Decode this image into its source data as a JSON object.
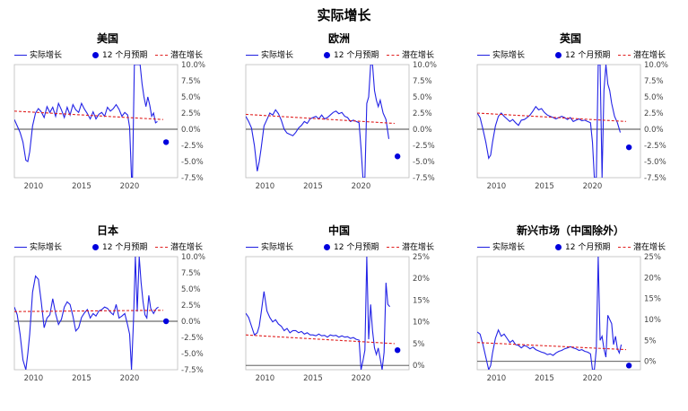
{
  "title": "实际增长",
  "legend": {
    "actual": "实际增长",
    "expected": "12 个月预期",
    "potential": "潜在增长"
  },
  "chart_data": [
    {
      "type": "line",
      "title": "美国",
      "xlim": [
        2008,
        2025
      ],
      "xticks": [
        "2010",
        "2015",
        "2020"
      ],
      "ylim": [
        -7.5,
        10
      ],
      "yticks": [
        "10.0%",
        "7.5%",
        "5.0%",
        "2.5%",
        "0.0%",
        "-2.5%",
        "-5.0%",
        "-7.5%"
      ],
      "ytick_values": [
        10,
        7.5,
        5,
        2.5,
        0,
        -2.5,
        -5,
        -7.5
      ],
      "series": [
        {
          "name": "实际增长",
          "x": [
            2008.0,
            2008.3,
            2008.6,
            2008.9,
            2009.2,
            2009.4,
            2009.6,
            2009.9,
            2010.2,
            2010.5,
            2010.8,
            2011.1,
            2011.4,
            2011.7,
            2012.0,
            2012.3,
            2012.6,
            2012.9,
            2013.2,
            2013.5,
            2013.8,
            2014.1,
            2014.4,
            2014.7,
            2015.0,
            2015.3,
            2015.6,
            2015.9,
            2016.2,
            2016.5,
            2016.8,
            2017.1,
            2017.4,
            2017.7,
            2018.0,
            2018.3,
            2018.6,
            2018.9,
            2019.2,
            2019.5,
            2019.8,
            2020.0,
            2020.2,
            2020.3,
            2020.5,
            2020.7,
            2020.9,
            2021.1,
            2021.3,
            2021.5,
            2021.7,
            2021.9,
            2022.1,
            2022.3,
            2022.5,
            2022.7,
            2022.9
          ],
          "y": [
            1.5,
            0.5,
            -0.5,
            -2.0,
            -4.8,
            -5.0,
            -3.5,
            0.5,
            2.5,
            3.2,
            2.7,
            1.8,
            3.5,
            2.6,
            3.4,
            2.0,
            4.0,
            3.0,
            1.8,
            3.4,
            2.2,
            3.8,
            3.0,
            2.6,
            4.0,
            3.1,
            2.4,
            1.6,
            2.7,
            1.6,
            2.3,
            2.6,
            2.0,
            3.4,
            2.8,
            3.2,
            3.8,
            3.1,
            2.0,
            2.6,
            2.2,
            0.3,
            -9.0,
            -9.0,
            10.0,
            10.0,
            10.0,
            10.0,
            7.0,
            5.0,
            3.5,
            5.0,
            3.7,
            2.0,
            2.5,
            1.0,
            1.2
          ]
        },
        {
          "name": "潜在增长",
          "x": [
            2008,
            2023.5
          ],
          "y": [
            2.8,
            1.5
          ]
        },
        {
          "name": "12 个月预期",
          "x": [
            2023.8
          ],
          "y": [
            -2.0
          ]
        }
      ]
    },
    {
      "type": "line",
      "title": "欧洲",
      "xlim": [
        2008,
        2025
      ],
      "xticks": [
        "2010",
        "2015",
        "2020"
      ],
      "ylim": [
        -7.5,
        10
      ],
      "yticks": [
        "10.0%",
        "7.5%",
        "5.0%",
        "2.5%",
        "0.0%",
        "-2.5%",
        "-5.0%",
        "-7.5%"
      ],
      "ytick_values": [
        10,
        7.5,
        5,
        2.5,
        0,
        -2.5,
        -5,
        -7.5
      ],
      "series": [
        {
          "name": "实际增长",
          "x": [
            2008.0,
            2008.3,
            2008.6,
            2008.9,
            2009.2,
            2009.4,
            2009.6,
            2009.9,
            2010.2,
            2010.5,
            2010.8,
            2011.1,
            2011.4,
            2011.7,
            2012.0,
            2012.3,
            2012.6,
            2012.9,
            2013.2,
            2013.5,
            2013.8,
            2014.1,
            2014.4,
            2014.7,
            2015.0,
            2015.3,
            2015.6,
            2015.9,
            2016.2,
            2016.5,
            2016.8,
            2017.1,
            2017.4,
            2017.7,
            2018.0,
            2018.3,
            2018.6,
            2018.9,
            2019.2,
            2019.5,
            2019.8,
            2020.0,
            2020.2,
            2020.4,
            2020.6,
            2020.8,
            2021.0,
            2021.2,
            2021.4,
            2021.6,
            2021.8,
            2022.0,
            2022.3,
            2022.6,
            2022.9
          ],
          "y": [
            2.0,
            1.2,
            0.2,
            -2.5,
            -6.5,
            -5.0,
            -3.0,
            0.5,
            1.5,
            2.5,
            2.2,
            3.0,
            2.4,
            1.4,
            0.0,
            -0.6,
            -0.8,
            -1.0,
            -0.5,
            0.2,
            0.6,
            1.2,
            0.9,
            1.6,
            1.8,
            2.0,
            1.6,
            2.2,
            1.6,
            1.8,
            2.2,
            2.6,
            2.8,
            2.4,
            2.6,
            2.0,
            1.8,
            1.2,
            1.4,
            1.2,
            1.0,
            -3.0,
            -7.5,
            -7.5,
            4.0,
            5.0,
            10.0,
            10.0,
            6.0,
            4.5,
            3.5,
            4.5,
            2.5,
            1.5,
            -1.5
          ]
        },
        {
          "name": "潜在增长",
          "x": [
            2008,
            2023.5
          ],
          "y": [
            2.3,
            0.9
          ]
        },
        {
          "name": "12 个月预期",
          "x": [
            2023.8
          ],
          "y": [
            -4.2
          ]
        }
      ]
    },
    {
      "type": "line",
      "title": "英国",
      "xlim": [
        2008,
        2025
      ],
      "xticks": [
        "2010",
        "2015",
        "2020"
      ],
      "ylim": [
        -7.5,
        10
      ],
      "yticks": [
        "10.0%",
        "7.5%",
        "5.0%",
        "2.5%",
        "0.0%",
        "-2.5%",
        "-5.0%",
        "-7.5%"
      ],
      "ytick_values": [
        10,
        7.5,
        5,
        2.5,
        0,
        -2.5,
        -5,
        -7.5
      ],
      "series": [
        {
          "name": "实际增长",
          "x": [
            2008.0,
            2008.3,
            2008.6,
            2008.9,
            2009.2,
            2009.4,
            2009.6,
            2009.9,
            2010.2,
            2010.5,
            2010.8,
            2011.1,
            2011.4,
            2011.7,
            2012.0,
            2012.3,
            2012.6,
            2012.9,
            2013.2,
            2013.5,
            2013.8,
            2014.1,
            2014.4,
            2014.7,
            2015.0,
            2015.3,
            2015.6,
            2015.9,
            2016.2,
            2016.5,
            2016.8,
            2017.1,
            2017.4,
            2017.7,
            2018.0,
            2018.3,
            2018.6,
            2018.9,
            2019.2,
            2019.5,
            2019.8,
            2020.0,
            2020.2,
            2020.4,
            2020.6,
            2020.8,
            2021.0,
            2021.2,
            2021.4,
            2021.6,
            2021.8,
            2022.0,
            2022.3,
            2022.6,
            2022.9
          ],
          "y": [
            2.5,
            1.8,
            0.0,
            -2.0,
            -4.5,
            -4.0,
            -2.0,
            0.5,
            2.0,
            2.5,
            2.0,
            1.6,
            1.2,
            1.5,
            1.0,
            0.6,
            1.4,
            1.5,
            1.8,
            2.2,
            2.8,
            3.5,
            3.0,
            3.2,
            2.6,
            2.2,
            2.0,
            1.8,
            1.6,
            1.8,
            2.0,
            1.8,
            1.5,
            1.8,
            1.2,
            1.4,
            1.6,
            1.3,
            1.4,
            1.2,
            1.0,
            -2.0,
            -7.5,
            -7.5,
            10.0,
            10.0,
            -7.5,
            6.0,
            10.0,
            7.0,
            6.0,
            4.0,
            2.0,
            1.0,
            -0.5
          ]
        },
        {
          "name": "潜在增长",
          "x": [
            2008,
            2023.5
          ],
          "y": [
            2.5,
            1.2
          ]
        },
        {
          "name": "12 个月预期",
          "x": [
            2023.8
          ],
          "y": [
            -2.8
          ]
        }
      ]
    },
    {
      "type": "line",
      "title": "日本",
      "xlim": [
        2008,
        2025
      ],
      "xticks": [
        "2010",
        "2015",
        "2020"
      ],
      "ylim": [
        -7.5,
        10
      ],
      "yticks": [
        "10.0%",
        "7.5%",
        "5.0%",
        "2.5%",
        "0.0%",
        "-2.5%",
        "-5.0%",
        "-7.5%"
      ],
      "ytick_values": [
        10,
        7.5,
        5,
        2.5,
        0,
        -2.5,
        -5,
        -7.5
      ],
      "series": [
        {
          "name": "实际增长",
          "x": [
            2008.0,
            2008.3,
            2008.6,
            2008.9,
            2009.2,
            2009.4,
            2009.6,
            2009.9,
            2010.2,
            2010.5,
            2010.8,
            2011.1,
            2011.4,
            2011.7,
            2012.0,
            2012.3,
            2012.6,
            2012.9,
            2013.2,
            2013.5,
            2013.8,
            2014.1,
            2014.4,
            2014.7,
            2015.0,
            2015.3,
            2015.6,
            2015.9,
            2016.2,
            2016.5,
            2016.8,
            2017.1,
            2017.4,
            2017.7,
            2018.0,
            2018.3,
            2018.6,
            2018.9,
            2019.2,
            2019.5,
            2019.8,
            2020.0,
            2020.2,
            2020.4,
            2020.6,
            2020.8,
            2021.0,
            2021.2,
            2021.4,
            2021.6,
            2021.8,
            2022.0,
            2022.2,
            2022.5,
            2022.8,
            2023.0
          ],
          "y": [
            2.2,
            1.0,
            -2.0,
            -6.0,
            -7.5,
            -5.0,
            -2.0,
            4.5,
            7.0,
            6.5,
            3.0,
            -1.0,
            0.5,
            1.0,
            3.5,
            1.2,
            -0.5,
            0.3,
            2.2,
            3.0,
            2.6,
            0.8,
            -1.5,
            -1.0,
            0.6,
            1.3,
            1.8,
            0.5,
            1.2,
            0.8,
            1.6,
            1.8,
            2.2,
            2.0,
            1.4,
            1.0,
            2.6,
            0.5,
            0.8,
            1.2,
            -0.6,
            -2.0,
            -7.5,
            0.0,
            10.0,
            1.5,
            10.0,
            6.0,
            3.0,
            1.0,
            0.5,
            4.0,
            2.0,
            1.2,
            2.0,
            2.2
          ]
        },
        {
          "name": "潜在增长",
          "x": [
            2008,
            2023.5
          ],
          "y": [
            1.5,
            1.7
          ]
        },
        {
          "name": "12 个月预期",
          "x": [
            2023.8
          ],
          "y": [
            0.0
          ]
        }
      ]
    },
    {
      "type": "line",
      "title": "中国",
      "xlim": [
        2008,
        2025
      ],
      "xticks": [
        "2010",
        "2015",
        "2020"
      ],
      "ylim": [
        -1,
        25
      ],
      "yticks": [
        "25%",
        "20%",
        "15%",
        "10%",
        "5%",
        "0%"
      ],
      "ytick_values": [
        25,
        20,
        15,
        10,
        5,
        0
      ],
      "series": [
        {
          "name": "实际增长",
          "x": [
            2008.0,
            2008.3,
            2008.6,
            2008.9,
            2009.2,
            2009.4,
            2009.6,
            2009.9,
            2010.2,
            2010.5,
            2010.8,
            2011.1,
            2011.4,
            2011.7,
            2012.0,
            2012.3,
            2012.6,
            2012.9,
            2013.2,
            2013.5,
            2013.8,
            2014.1,
            2014.4,
            2014.7,
            2015.0,
            2015.3,
            2015.6,
            2015.9,
            2016.2,
            2016.5,
            2016.8,
            2017.1,
            2017.4,
            2017.7,
            2018.0,
            2018.3,
            2018.6,
            2018.9,
            2019.2,
            2019.5,
            2019.8,
            2020.0,
            2020.2,
            2020.4,
            2020.6,
            2020.8,
            2021.0,
            2021.2,
            2021.4,
            2021.6,
            2021.8,
            2022.0,
            2022.2,
            2022.4,
            2022.6,
            2022.8,
            2023.0
          ],
          "y": [
            12.0,
            11.0,
            9.0,
            7.0,
            7.5,
            9.0,
            12.0,
            17.0,
            12.5,
            11.0,
            10.0,
            10.5,
            9.5,
            9.0,
            8.0,
            8.5,
            7.5,
            8.0,
            8.0,
            7.5,
            7.8,
            7.2,
            7.5,
            7.0,
            7.0,
            6.8,
            7.2,
            6.8,
            6.9,
            6.5,
            7.0,
            6.8,
            6.9,
            6.5,
            6.8,
            6.5,
            6.6,
            6.2,
            6.4,
            6.0,
            5.8,
            -1.0,
            1.0,
            3.5,
            25.0,
            6.0,
            14.0,
            8.0,
            4.0,
            2.5,
            4.0,
            1.5,
            -1.0,
            3.0,
            19.0,
            14.0,
            13.5
          ]
        },
        {
          "name": "潜在增长",
          "x": [
            2008,
            2023.5
          ],
          "y": [
            7.0,
            5.0
          ]
        },
        {
          "name": "12 个月预期",
          "x": [
            2023.8
          ],
          "y": [
            3.5
          ]
        }
      ]
    },
    {
      "type": "line",
      "title": "新兴市场（中国除外）",
      "xlim": [
        2008,
        2025
      ],
      "xticks": [
        "2010",
        "2015",
        "2020"
      ],
      "ylim": [
        -2,
        25
      ],
      "yticks": [
        "25%",
        "20%",
        "15%",
        "10%",
        "5%",
        "0%"
      ],
      "ytick_values": [
        25,
        20,
        15,
        10,
        5,
        0
      ],
      "series": [
        {
          "name": "实际增长",
          "x": [
            2008.0,
            2008.3,
            2008.6,
            2008.9,
            2009.2,
            2009.4,
            2009.6,
            2009.9,
            2010.2,
            2010.5,
            2010.8,
            2011.1,
            2011.4,
            2011.7,
            2012.0,
            2012.3,
            2012.6,
            2012.9,
            2013.2,
            2013.5,
            2013.8,
            2014.1,
            2014.4,
            2014.7,
            2015.0,
            2015.3,
            2015.6,
            2015.9,
            2016.2,
            2016.5,
            2016.8,
            2017.1,
            2017.4,
            2017.7,
            2018.0,
            2018.3,
            2018.6,
            2018.9,
            2019.2,
            2019.5,
            2019.8,
            2020.0,
            2020.2,
            2020.4,
            2020.6,
            2020.8,
            2021.0,
            2021.2,
            2021.4,
            2021.6,
            2021.8,
            2022.0,
            2022.2,
            2022.4,
            2022.6,
            2022.8,
            2023.0
          ],
          "y": [
            7.0,
            6.5,
            4.0,
            1.0,
            -2.0,
            -1.0,
            2.0,
            5.5,
            7.5,
            6.0,
            6.5,
            5.5,
            4.5,
            5.0,
            4.0,
            3.8,
            3.2,
            3.8,
            3.5,
            3.0,
            3.4,
            2.8,
            2.5,
            2.2,
            2.0,
            1.6,
            1.8,
            1.4,
            2.0,
            2.4,
            2.6,
            3.0,
            3.2,
            3.5,
            3.2,
            3.0,
            2.6,
            2.8,
            2.4,
            2.2,
            1.8,
            -2.0,
            -2.0,
            3.0,
            25.0,
            5.0,
            6.0,
            3.0,
            1.0,
            11.0,
            10.0,
            9.0,
            4.0,
            6.0,
            3.0,
            2.0,
            4.0
          ]
        },
        {
          "name": "潜在增长",
          "x": [
            2008,
            2023.5
          ],
          "y": [
            4.5,
            2.8
          ]
        },
        {
          "name": "12 个月预期",
          "x": [
            2023.8
          ],
          "y": [
            -1.0
          ]
        }
      ]
    }
  ]
}
